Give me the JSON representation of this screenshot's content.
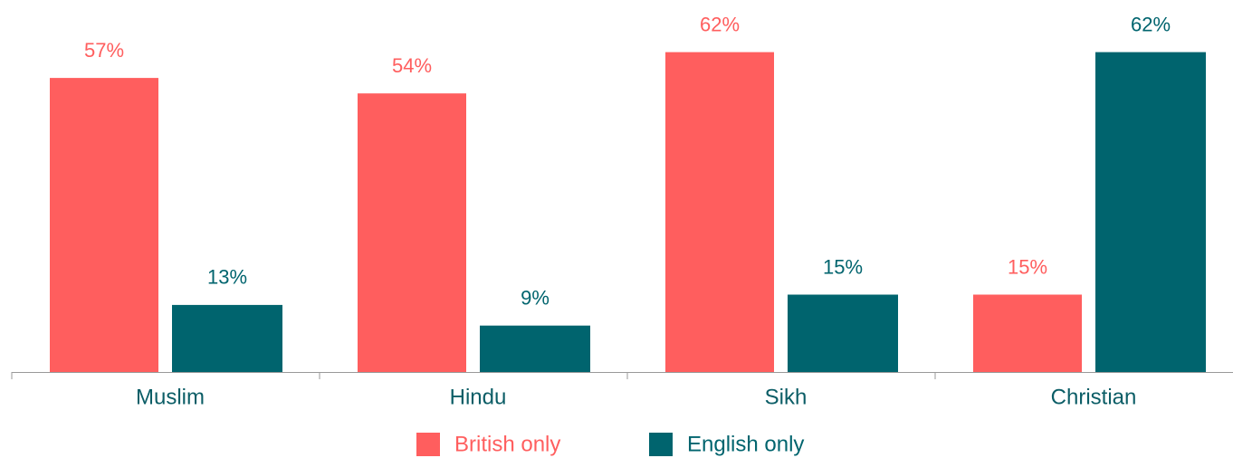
{
  "chart_data": {
    "type": "bar",
    "categories": [
      "Muslim",
      "Hindu",
      "Sikh",
      "Christian"
    ],
    "series": [
      {
        "name": "British only",
        "color": "#ff5e5e",
        "values": [
          57,
          54,
          62,
          15
        ],
        "value_labels": [
          "57%",
          "54%",
          "62%",
          "15%"
        ]
      },
      {
        "name": "English only",
        "color": "#00646e",
        "values": [
          13,
          9,
          15,
          62
        ],
        "value_labels": [
          "13%",
          "9%",
          "15%",
          "62%"
        ]
      }
    ],
    "legend": "bottom"
  }
}
